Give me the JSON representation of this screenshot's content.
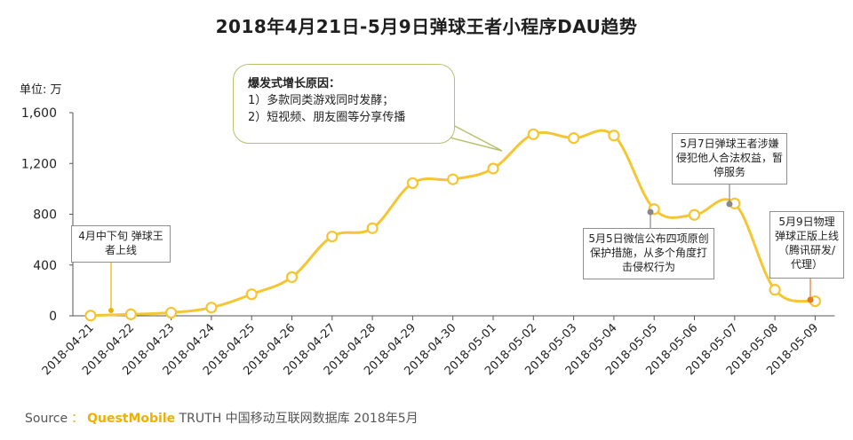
{
  "title": "2018年4月21日-5月9日弹球王者小程序DAU趋势",
  "unit_label": "单位: 万",
  "footer": {
    "prefix": "Source",
    "separator": "：",
    "brand": "QuestMobile",
    "rest": "TRUTH 中国移动互联网数据库 2018年5月"
  },
  "colors": {
    "line": "#f5c634",
    "marker_fill": "#ffffff",
    "axis": "#555555",
    "brand": "#f0b000",
    "callout_border": "#b8c070"
  },
  "annotations": {
    "main": {
      "title": "爆发式增长原因：",
      "line1": "1）多款同类游戏同时发酵；",
      "line2": "2）短视频、朋友圈等分享传播"
    },
    "mid_april": "4月中下旬 弹球王者上线",
    "may5": "5月5日微信公布四项原创保护措施，从多个角度打击侵权行为",
    "may7": "5月7日弹球王者涉嫌侵犯他人合法权益，暂停服务",
    "may9": "5月9日物理弹球正版上线（腾讯研发/代理）"
  },
  "chart_data": {
    "type": "line",
    "title": "2018年4月21日-5月9日弹球王者小程序DAU趋势",
    "ylabel": "单位: 万",
    "ylim": [
      0,
      1600
    ],
    "yticks": [
      0,
      400,
      800,
      1200,
      1600
    ],
    "ytick_labels": [
      "0",
      "400",
      "800",
      "1,200",
      "1,600"
    ],
    "grid": false,
    "categories": [
      "2018-04-21",
      "2018-04-22",
      "2018-04-23",
      "2018-04-24",
      "2018-04-25",
      "2018-04-26",
      "2018-04-27",
      "2018-04-28",
      "2018-04-29",
      "2018-04-30",
      "2018-05-01",
      "2018-05-02",
      "2018-05-03",
      "2018-05-04",
      "2018-05-05",
      "2018-05-06",
      "2018-05-07",
      "2018-05-08",
      "2018-05-09"
    ],
    "series": [
      {
        "values": [
          2,
          12,
          25,
          65,
          170,
          305,
          625,
          690,
          1045,
          1075,
          1160,
          1430,
          1400,
          1420,
          840,
          795,
          885,
          205,
          115
        ]
      }
    ]
  }
}
